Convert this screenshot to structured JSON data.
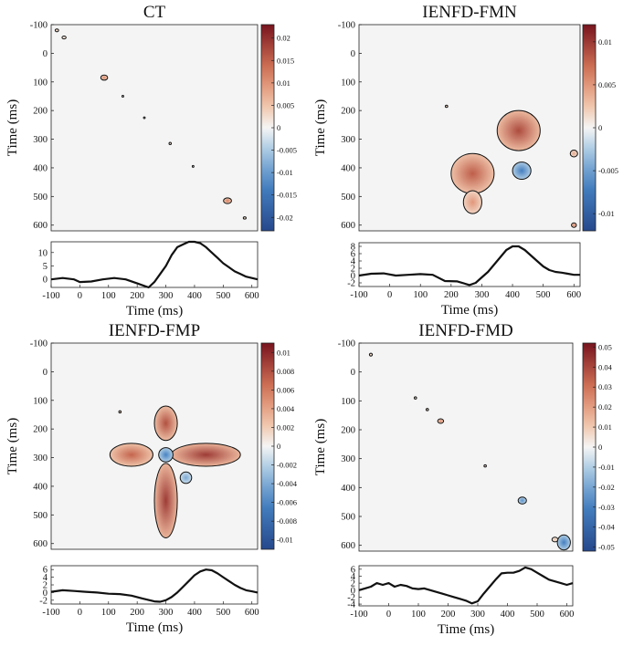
{
  "chart_data": [
    {
      "type": "heatmap",
      "title": "CT",
      "xlabel": "Time (ms)",
      "ylabel": "Time (ms)",
      "xlim": [
        -100,
        620
      ],
      "ylim": [
        -100,
        620
      ],
      "ticks": [
        "-100",
        "0",
        "100",
        "200",
        "300",
        "400",
        "500",
        "600"
      ],
      "colorbar": {
        "range": [
          -0.023,
          0.023
        ],
        "ticks": [
          "0.02",
          "0.015",
          "0.01",
          "0.005",
          "0",
          "-0.005",
          "-0.01",
          "-0.015",
          "-0.02"
        ]
      },
      "blobs": [
        {
          "t1": -80,
          "t2": -80,
          "rx": 6,
          "ry": 5,
          "v": 0.004
        },
        {
          "t1": -55,
          "t2": -55,
          "rx": 7,
          "ry": 5,
          "v": 0.003
        },
        {
          "t1": 85,
          "t2": 85,
          "rx": 12,
          "ry": 9,
          "v": 0.011
        },
        {
          "t1": 150,
          "t2": 150,
          "rx": 3,
          "ry": 3,
          "v": 0.002
        },
        {
          "t1": 225,
          "t2": 225,
          "rx": 3,
          "ry": 3,
          "v": 0.002
        },
        {
          "t1": 315,
          "t2": 315,
          "rx": 4,
          "ry": 4,
          "v": 0.002
        },
        {
          "t1": 395,
          "t2": 395,
          "rx": 3,
          "ry": 3,
          "v": 0.002
        },
        {
          "t1": 515,
          "t2": 515,
          "rx": 14,
          "ry": 10,
          "v": 0.012
        },
        {
          "t1": 575,
          "t2": 575,
          "rx": 5,
          "ry": 4,
          "v": 0.003
        }
      ],
      "trace": {
        "yticks": [
          "10",
          "5",
          "0"
        ],
        "ylim": [
          -3,
          14
        ],
        "x": [
          -100,
          -60,
          -20,
          0,
          40,
          80,
          120,
          160,
          200,
          240,
          260,
          280,
          300,
          320,
          340,
          360,
          380,
          400,
          420,
          440,
          460,
          480,
          500,
          520,
          540,
          560,
          580,
          600,
          620
        ],
        "y": [
          0,
          0.5,
          0,
          -1,
          -0.8,
          0,
          0.5,
          0,
          -1.5,
          -3,
          -1,
          2,
          5,
          9,
          12,
          13,
          14,
          14,
          13.5,
          12,
          10,
          8,
          6,
          4.5,
          3,
          2,
          1,
          0.5,
          0
        ]
      }
    },
    {
      "type": "heatmap",
      "title": "IENFD-FMN",
      "xlabel": "Time (ms)",
      "ylabel": "Time (ms)",
      "xlim": [
        -100,
        620
      ],
      "ylim": [
        -100,
        620
      ],
      "ticks": [
        "-100",
        "0",
        "100",
        "200",
        "300",
        "400",
        "500",
        "600"
      ],
      "colorbar": {
        "range": [
          -0.012,
          0.012
        ],
        "ticks": [
          "0.01",
          "0.005",
          "0",
          "-0.005",
          "-0.01"
        ]
      },
      "blobs": [
        {
          "t1": 420,
          "t2": 270,
          "rx": 70,
          "ry": 70,
          "v": 0.009
        },
        {
          "t1": 270,
          "t2": 420,
          "rx": 70,
          "ry": 70,
          "v": 0.008
        },
        {
          "t1": 270,
          "t2": 520,
          "rx": 30,
          "ry": 40,
          "v": 0.005
        },
        {
          "t1": 430,
          "t2": 410,
          "rx": 30,
          "ry": 30,
          "v": -0.007
        },
        {
          "t1": 185,
          "t2": 185,
          "rx": 4,
          "ry": 4,
          "v": 0.002
        },
        {
          "t1": 600,
          "t2": 600,
          "rx": 8,
          "ry": 8,
          "v": 0.006
        },
        {
          "t1": 600,
          "t2": 350,
          "rx": 12,
          "ry": 12,
          "v": 0.004
        }
      ],
      "trace": {
        "yticks": [
          "8",
          "6",
          "4",
          "2",
          "0",
          "-2"
        ],
        "ylim": [
          -3,
          9
        ],
        "x": [
          -100,
          -60,
          -20,
          20,
          60,
          100,
          140,
          180,
          220,
          260,
          280,
          300,
          320,
          340,
          360,
          380,
          400,
          420,
          440,
          460,
          480,
          500,
          520,
          540,
          560,
          580,
          600,
          620
        ],
        "y": [
          0,
          0.5,
          0.6,
          0,
          0.2,
          0.4,
          0.2,
          -1.5,
          -1.6,
          -2.6,
          -2,
          -0.5,
          1,
          3,
          5,
          7,
          8,
          8,
          7,
          5.5,
          4,
          2.5,
          1.5,
          1,
          0.8,
          0.5,
          0.2,
          0.2
        ]
      }
    },
    {
      "type": "heatmap",
      "title": "IENFD-FMP",
      "xlabel": "Time (ms)",
      "ylabel": "Time (ms)",
      "xlim": [
        -100,
        620
      ],
      "ylim": [
        -100,
        620
      ],
      "ticks": [
        "-100",
        "0",
        "100",
        "200",
        "300",
        "400",
        "500",
        "600"
      ],
      "colorbar": {
        "range": [
          -0.011,
          0.011
        ],
        "ticks": [
          "0.01",
          "0.008",
          "0.006",
          "0.004",
          "0.002",
          "0",
          "-0.002",
          "-0.004",
          "-0.006",
          "-0.008",
          "-0.01"
        ]
      },
      "blobs": [
        {
          "t1": 300,
          "t2": 180,
          "rx": 40,
          "ry": 60,
          "v": 0.008
        },
        {
          "t1": 300,
          "t2": 450,
          "rx": 40,
          "ry": 130,
          "v": 0.009
        },
        {
          "t1": 180,
          "t2": 290,
          "rx": 75,
          "ry": 40,
          "v": 0.007
        },
        {
          "t1": 440,
          "t2": 290,
          "rx": 120,
          "ry": 40,
          "v": 0.009
        },
        {
          "t1": 300,
          "t2": 290,
          "rx": 25,
          "ry": 25,
          "v": -0.006
        },
        {
          "t1": 370,
          "t2": 370,
          "rx": 20,
          "ry": 20,
          "v": -0.004
        },
        {
          "t1": 140,
          "t2": 140,
          "rx": 4,
          "ry": 4,
          "v": 0.002
        }
      ],
      "trace": {
        "yticks": [
          "6",
          "4",
          "2",
          "0",
          "-2"
        ],
        "ylim": [
          -3,
          7
        ],
        "x": [
          -100,
          -60,
          -20,
          20,
          60,
          100,
          140,
          180,
          220,
          260,
          280,
          300,
          320,
          340,
          360,
          380,
          400,
          420,
          440,
          460,
          480,
          500,
          520,
          540,
          560,
          580,
          600,
          620
        ],
        "y": [
          0.2,
          0.6,
          0.4,
          0.2,
          0,
          -0.3,
          -0.4,
          -0.8,
          -1.6,
          -2.3,
          -2.4,
          -2,
          -1.2,
          0,
          1.5,
          3,
          4.5,
          5.5,
          6,
          5.8,
          5,
          4,
          3,
          2,
          1.2,
          0.6,
          0.3,
          0
        ]
      }
    },
    {
      "type": "heatmap",
      "title": "IENFD-FMD",
      "xlabel": "Time (ms)",
      "ylabel": "Time (ms)",
      "xlim": [
        -100,
        620
      ],
      "ylim": [
        -100,
        620
      ],
      "ticks": [
        "-100",
        "0",
        "100",
        "200",
        "300",
        "400",
        "500",
        "600"
      ],
      "colorbar": {
        "range": [
          -0.052,
          0.052
        ],
        "ticks": [
          "0.05",
          "0.04",
          "0.03",
          "0.02",
          "0.01",
          "0",
          "-0.01",
          "-0.02",
          "-0.03",
          "-0.04",
          "-0.05"
        ]
      },
      "blobs": [
        {
          "t1": -60,
          "t2": -60,
          "rx": 5,
          "ry": 5,
          "v": 0.01
        },
        {
          "t1": 90,
          "t2": 90,
          "rx": 4,
          "ry": 4,
          "v": 0.008
        },
        {
          "t1": 130,
          "t2": 130,
          "rx": 4,
          "ry": 4,
          "v": 0.01
        },
        {
          "t1": 175,
          "t2": 170,
          "rx": 10,
          "ry": 8,
          "v": 0.025
        },
        {
          "t1": 325,
          "t2": 325,
          "rx": 4,
          "ry": 4,
          "v": 0.008
        },
        {
          "t1": 450,
          "t2": 445,
          "rx": 14,
          "ry": 12,
          "v": -0.025
        },
        {
          "t1": 590,
          "t2": 590,
          "rx": 22,
          "ry": 26,
          "v": -0.03
        },
        {
          "t1": 560,
          "t2": 580,
          "rx": 10,
          "ry": 8,
          "v": 0.01
        }
      ],
      "trace": {
        "yticks": [
          "6",
          "4",
          "2",
          "0",
          "-2",
          "-4"
        ],
        "ylim": [
          -4.5,
          7
        ],
        "x": [
          -100,
          -80,
          -60,
          -40,
          -20,
          0,
          20,
          40,
          60,
          80,
          100,
          120,
          140,
          160,
          180,
          200,
          220,
          240,
          260,
          280,
          300,
          320,
          340,
          360,
          380,
          400,
          420,
          440,
          460,
          480,
          500,
          520,
          540,
          560,
          580,
          600,
          620
        ],
        "y": [
          0,
          0.5,
          1,
          2,
          1.5,
          2,
          1,
          1.5,
          1.2,
          0.5,
          0.3,
          0.5,
          0,
          -0.5,
          -1,
          -1.5,
          -2,
          -2.5,
          -3,
          -3.8,
          -3.2,
          -1,
          1,
          3,
          4.8,
          5,
          5,
          5.5,
          6.5,
          6,
          5,
          4,
          3,
          2.5,
          2,
          1.5,
          2
        ]
      }
    }
  ]
}
